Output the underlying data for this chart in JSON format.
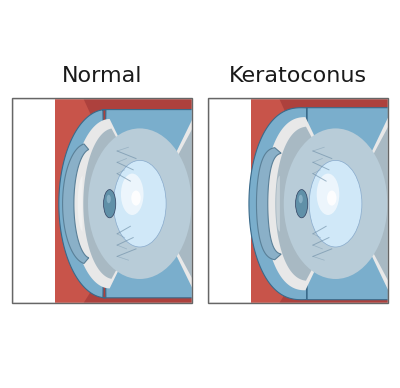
{
  "background_color": "#ffffff",
  "panel_bg": "#ffffff",
  "title_normal": "Normal",
  "title_keratoconus": "Keratoconus",
  "title_fontsize": 16,
  "sclera_color": "#c8544a",
  "sclera_dark": "#a83a38",
  "choroid_color": "#b84040",
  "sclera_outer_color": "#8b3030",
  "blue_layer_color": "#7aaecc",
  "blue_layer_dark": "#4a7a9b",
  "white_sclera_color": "#e8e8e8",
  "white_sclera_light": "#f5f5f5",
  "cornea_color": "#8ab0c8",
  "cornea_dark": "#5a8098",
  "lens_color": "#d0e8f8",
  "lens_light": "#f0f8ff",
  "lens_dark": "#a0c0d8",
  "pupil_color": "#6090a8",
  "pupil_dark": "#405870",
  "highlight_color": "#ffffff",
  "border_color": "#333333",
  "text_color": "#1a1a1a",
  "ciliary_color": "#8090a8"
}
